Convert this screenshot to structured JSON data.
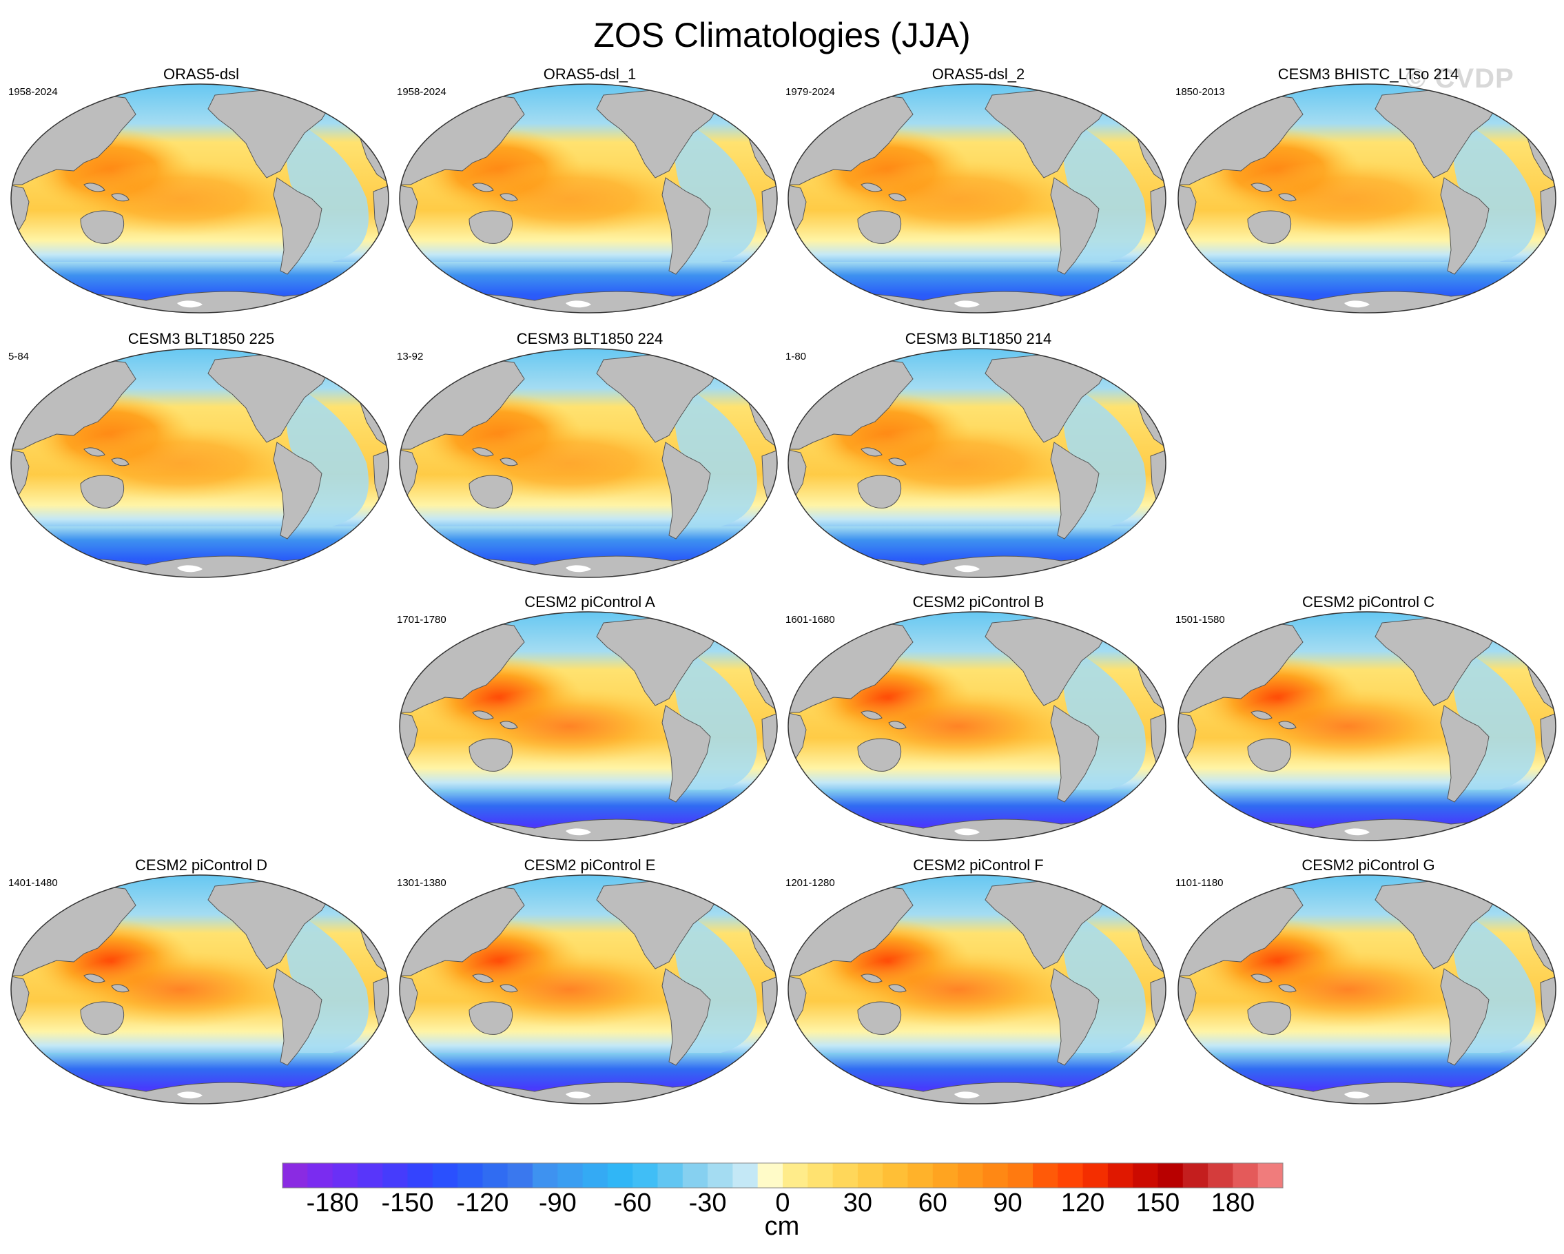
{
  "title": "ZOS Climatologies (JJA)",
  "watermark": "© CVDP",
  "colors": {
    "land": "#bdbdbd",
    "coast": "#555555",
    "ocean_outline": "#333333"
  },
  "panels": [
    {
      "title": "ORAS5-dsl",
      "period": "1958-2024",
      "row": 0,
      "col": 0
    },
    {
      "title": "ORAS5-dsl_1",
      "period": "1958-2024",
      "row": 0,
      "col": 1
    },
    {
      "title": "ORAS5-dsl_2",
      "period": "1979-2024",
      "row": 0,
      "col": 2
    },
    {
      "title": "CESM3 BHISTC_LTso 214",
      "period": "1850-2013",
      "row": 0,
      "col": 3
    },
    {
      "title": "CESM3 BLT1850 225",
      "period": "5-84",
      "row": 1,
      "col": 0
    },
    {
      "title": "CESM3 BLT1850 224",
      "period": "13-92",
      "row": 1,
      "col": 1
    },
    {
      "title": "CESM3 BLT1850 214",
      "period": "1-80",
      "row": 1,
      "col": 2
    },
    {
      "title": "CESM2 piControl A",
      "period": "1701-1780",
      "row": 2,
      "col": 1
    },
    {
      "title": "CESM2 piControl B",
      "period": "1601-1680",
      "row": 2,
      "col": 2
    },
    {
      "title": "CESM2 piControl C",
      "period": "1501-1580",
      "row": 2,
      "col": 3
    },
    {
      "title": "CESM2 piControl D",
      "period": "1401-1480",
      "row": 3,
      "col": 0
    },
    {
      "title": "CESM2 piControl E",
      "period": "1301-1380",
      "row": 3,
      "col": 1
    },
    {
      "title": "CESM2 piControl F",
      "period": "1201-1280",
      "row": 3,
      "col": 2
    },
    {
      "title": "CESM2 piControl G",
      "period": "1101-1180",
      "row": 3,
      "col": 3
    }
  ],
  "colorbar": {
    "unit": "cm",
    "min": -200,
    "max": 200,
    "step": 10,
    "tick_labels": [
      "-180",
      "-150",
      "-120",
      "-90",
      "-60",
      "-30",
      "0",
      "30",
      "60",
      "90",
      "120",
      "150",
      "180"
    ],
    "tick_values": [
      -180,
      -150,
      -120,
      -90,
      -60,
      -30,
      0,
      30,
      60,
      90,
      120,
      150,
      180
    ]
  }
}
